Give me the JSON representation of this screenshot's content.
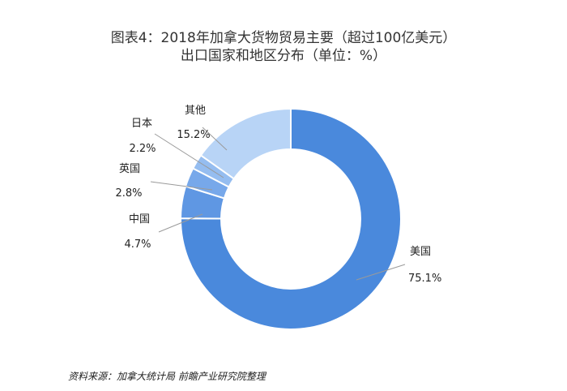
{
  "chart_data": {
    "type": "pie",
    "donut": true,
    "title": "图表4：2018年加拿大货物贸易主要（超过100亿美元）",
    "subtitle": "出口国家和地区分布（单位：%）",
    "legend": "none",
    "slices": [
      {
        "name": "美国",
        "value": 75.1,
        "label": "75.1%",
        "color": "#4a89dc"
      },
      {
        "name": "中国",
        "value": 4.7,
        "label": "4.7%",
        "color": "#5f97e3"
      },
      {
        "name": "英国",
        "value": 2.8,
        "label": "2.8%",
        "color": "#77a8ea"
      },
      {
        "name": "日本",
        "value": 2.2,
        "label": "2.2%",
        "color": "#95bdf0"
      },
      {
        "name": "其他",
        "value": 15.2,
        "label": "15.2%",
        "color": "#b8d4f6"
      }
    ]
  },
  "source": "资料来源：加拿大统计局 前瞻产业研究院整理"
}
